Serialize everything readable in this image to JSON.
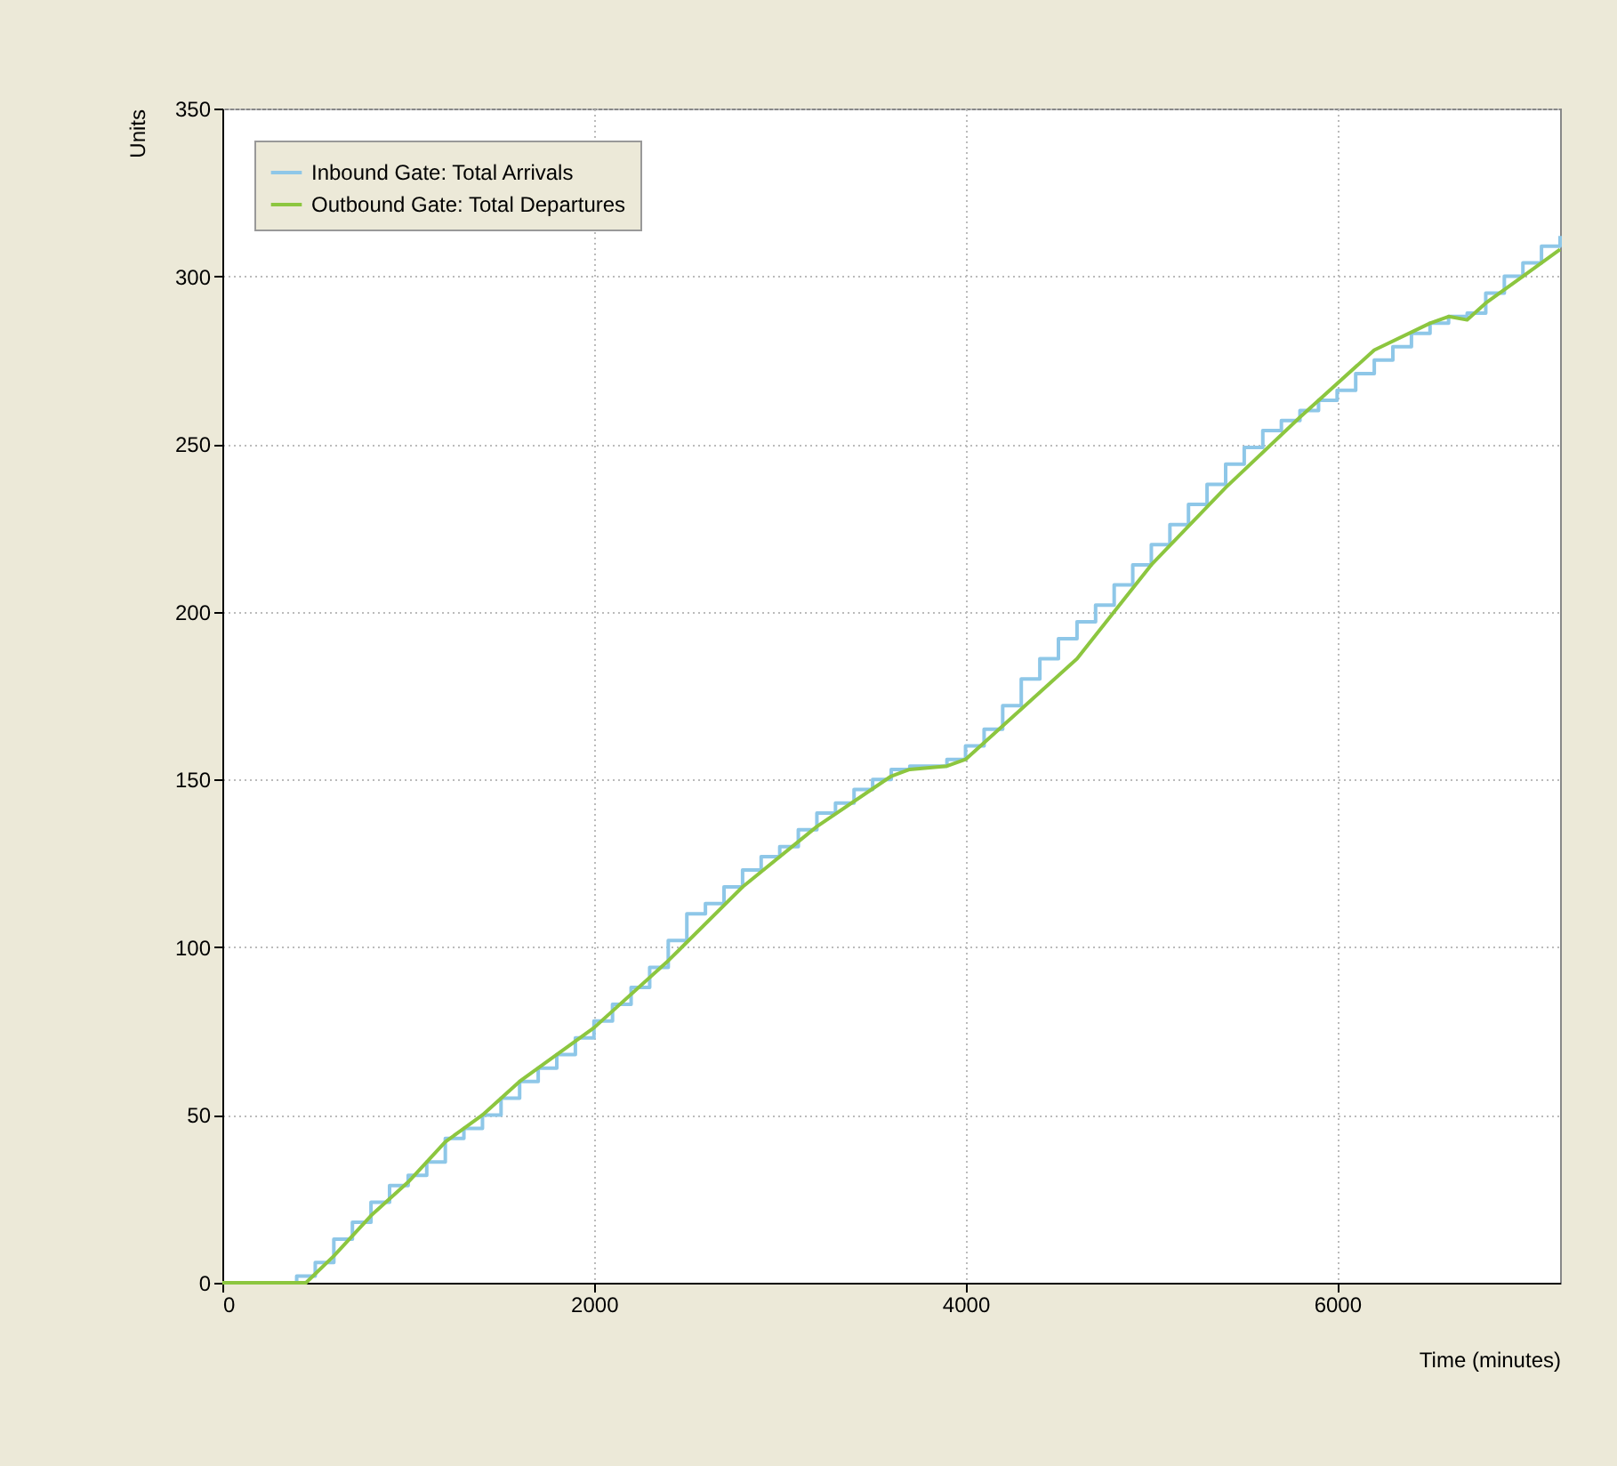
{
  "chart_data": {
    "type": "line",
    "xlabel": "Time (minutes)",
    "ylabel": "Units",
    "xlim": [
      0,
      7200
    ],
    "xticks": [
      0,
      2000,
      4000,
      6000
    ],
    "ylim": [
      0,
      350
    ],
    "yticks": [
      0,
      50,
      100,
      150,
      200,
      250,
      300,
      350
    ],
    "grid": true,
    "legend": "top left",
    "series": [
      {
        "name": "Inbound Gate: Total Arrivals",
        "type": "step",
        "color": "#8ec7e8",
        "x": [
          0,
          380,
          400,
          500,
          600,
          700,
          800,
          900,
          1000,
          1100,
          1200,
          1300,
          1400,
          1500,
          1600,
          1700,
          1800,
          1900,
          2000,
          2100,
          2200,
          2300,
          2400,
          2500,
          2600,
          2700,
          2800,
          2900,
          3000,
          3100,
          3200,
          3300,
          3400,
          3500,
          3600,
          3700,
          3800,
          3900,
          4000,
          4100,
          4200,
          4300,
          4400,
          4500,
          4600,
          4700,
          4800,
          4900,
          5000,
          5100,
          5200,
          5300,
          5400,
          5500,
          5600,
          5700,
          5800,
          5900,
          6000,
          6100,
          6200,
          6300,
          6400,
          6500,
          6600,
          6700,
          6800,
          6900,
          7000,
          7100,
          7200
        ],
        "values": [
          0,
          0,
          2,
          6,
          13,
          18,
          24,
          29,
          32,
          36,
          43,
          46,
          50,
          55,
          60,
          64,
          68,
          73,
          78,
          83,
          88,
          94,
          102,
          110,
          113,
          118,
          123,
          127,
          130,
          135,
          140,
          143,
          147,
          150,
          153,
          154,
          154,
          156,
          160,
          165,
          172,
          180,
          186,
          192,
          197,
          202,
          208,
          214,
          220,
          226,
          232,
          238,
          244,
          249,
          254,
          257,
          260,
          263,
          266,
          271,
          275,
          279,
          283,
          286,
          288,
          289,
          295,
          300,
          304,
          309,
          312
        ]
      },
      {
        "name": "Outbound Gate: Total Departures",
        "color": "#8cc63f",
        "x": [
          0,
          450,
          600,
          800,
          1000,
          1200,
          1400,
          1600,
          2000,
          2400,
          2800,
          3200,
          3600,
          3700,
          3900,
          4000,
          4200,
          4600,
          5000,
          5400,
          5800,
          6200,
          6500,
          6600,
          6700,
          6800,
          7000,
          7200
        ],
        "values": [
          0,
          0,
          8,
          20,
          30,
          42,
          50,
          60,
          76,
          96,
          118,
          136,
          151,
          153,
          154,
          156,
          166,
          186,
          214,
          237,
          258,
          278,
          286,
          288,
          287,
          292,
          300,
          308
        ]
      }
    ]
  }
}
